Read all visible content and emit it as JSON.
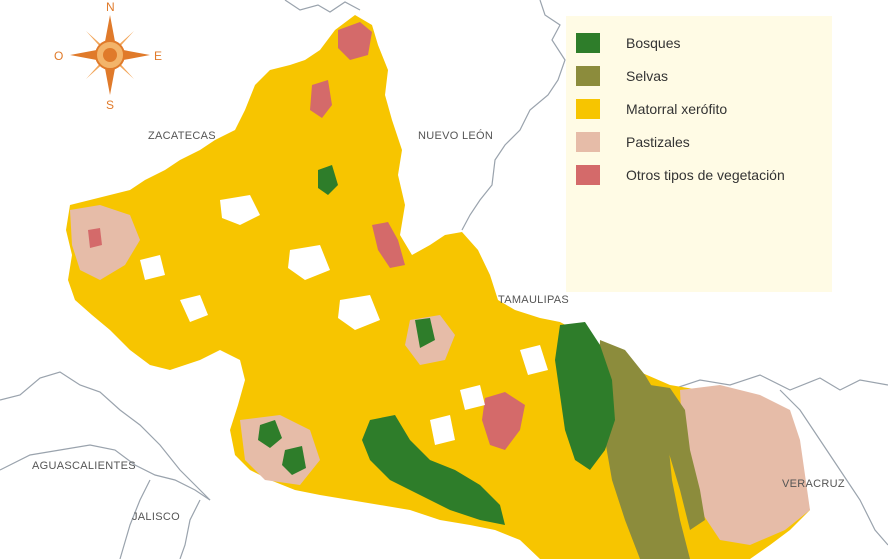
{
  "compass": {
    "north": "N",
    "south": "S",
    "east": "E",
    "west": "O"
  },
  "states": {
    "zacatecas": "ZACATECAS",
    "nuevo_leon": "NUEVO LEÓN",
    "tamaulipas": "TAMAULIPAS",
    "aguascalientes": "AGUASCALIENTES",
    "jalisco": "JALISCO",
    "veracruz": "VERACRUZ"
  },
  "legend": {
    "items": [
      {
        "label": "Bosques",
        "color": "#2e7d2a"
      },
      {
        "label": "Selvas",
        "color": "#8c8c3c"
      },
      {
        "label": "Matorral xerófito",
        "color": "#f7c500"
      },
      {
        "label": "Pastizales",
        "color": "#e6bca8"
      },
      {
        "label": "Otros tipos de vegetación",
        "color": "#d46a6a"
      }
    ]
  },
  "colors": {
    "bosques": "#2e7d2a",
    "selvas": "#8c8c3c",
    "matorral": "#f7c500",
    "pastizales": "#e6bca8",
    "otros": "#d46a6a",
    "border": "#9aa3ad",
    "compass": "#e07a2a"
  }
}
